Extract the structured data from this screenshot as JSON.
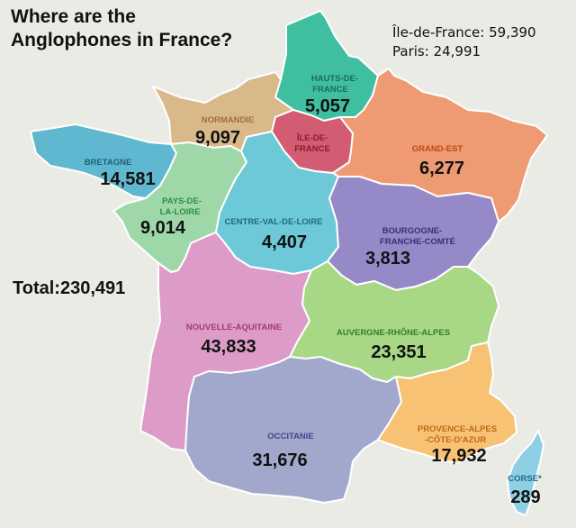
{
  "title_line1": "Where are the",
  "title_line2": "Anglophones in France?",
  "notes": [
    {
      "label": "Île-de-France:",
      "value": "59,390"
    },
    {
      "label": "Paris:",
      "value": "24,991"
    }
  ],
  "total": "Total:230,491",
  "regions": {
    "hauts_de_france": {
      "name1": "HAUTS-DE-",
      "name2": "FRANCE",
      "value": "5,057",
      "color": "#3fbfa0",
      "label_color": "#1c6b5a"
    },
    "normandie": {
      "name": "NORMANDIE",
      "value": "9,097",
      "color": "#d9b98a",
      "label_color": "#a07038"
    },
    "ile_de_france": {
      "name1": "ÎLE-DE-",
      "name2": "FRANCE",
      "color": "#d25c72",
      "label_color": "#8a1a30"
    },
    "grand_est": {
      "name": "GRAND-EST",
      "value": "6,277",
      "color": "#ee9a72",
      "label_color": "#c04a1a"
    },
    "bretagne": {
      "name": "BRETAGNE",
      "value": "14,581",
      "color": "#5fb8cf",
      "label_color": "#1f5f7a"
    },
    "pays_de_la_loire": {
      "name1": "PAYS-DE-",
      "name2": "LA-LOIRE",
      "value": "9,014",
      "color": "#9fd8a8",
      "label_color": "#2f8a48"
    },
    "centre_val_de_loire": {
      "name": "CENTRE-VAL-DE-LOIRE",
      "value": "4,407",
      "color": "#6dc8d8",
      "label_color": "#1f6a82"
    },
    "bourgogne_franche_comte": {
      "name1": "BOURGOGNE-",
      "name2": "FRANCHE-COMTÉ",
      "value": "3,813",
      "color": "#9589c8",
      "label_color": "#3a2f7a"
    },
    "nouvelle_aquitaine": {
      "name": "NOUVELLE-AQUITAINE",
      "value": "43,833",
      "color": "#dd9cc8",
      "label_color": "#a03a78"
    },
    "auvergne_rhone_alpes": {
      "name": "AUVERGNE-RHÔNE-ALPES",
      "value": "23,351",
      "color": "#a8d886",
      "label_color": "#3a7a2a"
    },
    "occitanie": {
      "name": "OCCITANIE",
      "value": "31,676",
      "color": "#a2a8cc",
      "label_color": "#3a4a8a"
    },
    "provence_alpes_cote_dazur": {
      "name1": "PROVENCE-ALPES",
      "name2": "-CÔTE-D'AZUR",
      "value": "17,932",
      "color": "#f7c274",
      "label_color": "#c06a18"
    },
    "corse": {
      "name": "CORSE*",
      "value": "289",
      "color": "#8fcfe6",
      "label_color": "#1f6a8a"
    }
  },
  "colors": {
    "background": "#ebebe6",
    "border": "#ffffff"
  }
}
